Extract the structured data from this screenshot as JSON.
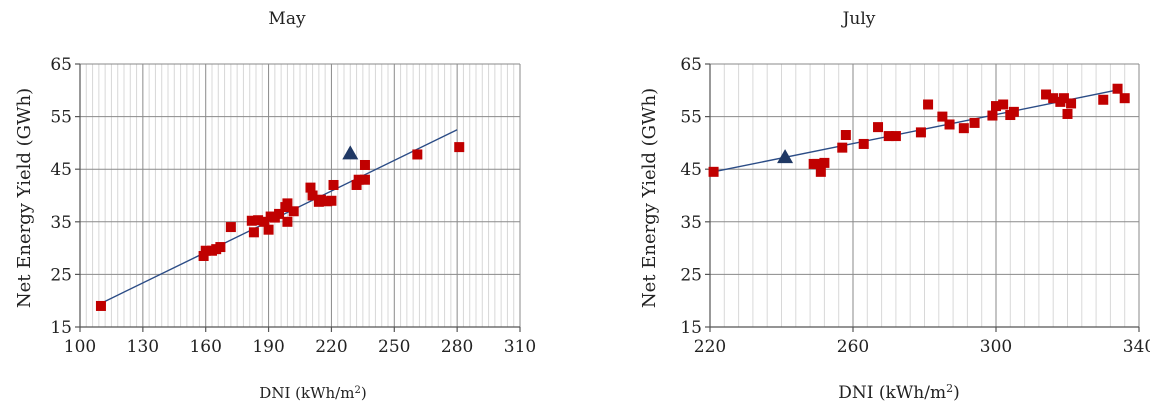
{
  "chart_data": [
    {
      "type": "scatter",
      "title": "May",
      "xlabel": "DNI (kWh/m",
      "xlabel_sup": "2",
      "xlabel_end": ")",
      "ylabel": "Net Energy Yield (GWh)",
      "xlim": [
        100,
        310
      ],
      "ylim": [
        15,
        65
      ],
      "xticks": [
        "100",
        "130",
        "160",
        "190",
        "220",
        "250",
        "280",
        "310"
      ],
      "yticks": [
        "15",
        "25",
        "35",
        "45",
        "55",
        "65"
      ],
      "grid": true,
      "colors": {
        "points": "#c00000",
        "highlight": "#1f3864",
        "trend": "#2b4c86"
      },
      "series": [
        {
          "marker": "square",
          "points": [
            [
              110,
              19
            ],
            [
              159,
              28.5
            ],
            [
              160,
              29.5
            ],
            [
              163,
              29.5
            ],
            [
              165,
              29.8
            ],
            [
              167,
              30.2
            ],
            [
              172,
              34
            ],
            [
              182,
              35.2
            ],
            [
              183,
              33
            ],
            [
              185,
              35.3
            ],
            [
              188,
              35
            ],
            [
              190,
              33.5
            ],
            [
              191,
              36
            ],
            [
              193,
              35.8
            ],
            [
              195,
              36.5
            ],
            [
              198,
              37.8
            ],
            [
              199,
              38.5
            ],
            [
              199,
              35
            ],
            [
              202,
              37
            ],
            [
              210,
              41.5
            ],
            [
              211,
              40
            ],
            [
              214,
              38.8
            ],
            [
              215,
              39.2
            ],
            [
              218,
              38.9
            ],
            [
              220,
              39
            ],
            [
              221,
              42
            ],
            [
              232,
              42
            ],
            [
              233,
              43
            ],
            [
              236,
              45.8
            ],
            [
              236,
              43
            ],
            [
              261,
              47.8
            ],
            [
              281,
              49.2
            ]
          ]
        },
        {
          "marker": "triangle",
          "points": [
            [
              229,
              48
            ]
          ]
        }
      ],
      "trendline": [
        [
          110,
          19.5
        ],
        [
          280,
          52.5
        ]
      ]
    },
    {
      "type": "scatter",
      "title": "July",
      "xlabel": "DNI (kWh/m",
      "xlabel_sup": "2",
      "xlabel_end": ")",
      "ylabel": "Net Energy Yield (GWh)",
      "xlim": [
        220,
        340
      ],
      "ylim": [
        15,
        65
      ],
      "xticks": [
        "220",
        "260",
        "300",
        "340"
      ],
      "yticks": [
        "15",
        "25",
        "35",
        "45",
        "55",
        "65"
      ],
      "grid": true,
      "colors": {
        "points": "#c00000",
        "highlight": "#1f3864",
        "trend": "#2b4c86"
      },
      "series": [
        {
          "marker": "square",
          "points": [
            [
              221,
              44.5
            ],
            [
              249,
              46
            ],
            [
              251,
              44.5
            ],
            [
              250,
              46
            ],
            [
              252,
              46.2
            ],
            [
              257,
              49.1
            ],
            [
              258,
              51.5
            ],
            [
              263,
              49.8
            ],
            [
              267,
              53
            ],
            [
              270,
              51.3
            ],
            [
              272,
              51.3
            ],
            [
              279,
              52
            ],
            [
              281,
              57.3
            ],
            [
              285,
              55
            ],
            [
              287,
              53.5
            ],
            [
              291,
              52.8
            ],
            [
              294,
              53.8
            ],
            [
              299,
              55.2
            ],
            [
              300,
              57
            ],
            [
              302,
              57.3
            ],
            [
              304,
              55.3
            ],
            [
              305,
              55.9
            ],
            [
              314,
              59.2
            ],
            [
              316,
              58.5
            ],
            [
              318,
              57.8
            ],
            [
              319,
              58.5
            ],
            [
              320,
              55.5
            ],
            [
              321,
              57.5
            ],
            [
              330,
              58.2
            ],
            [
              334,
              60.3
            ],
            [
              336,
              58.5
            ]
          ]
        },
        {
          "marker": "triangle",
          "points": [
            [
              241,
              47.3
            ]
          ]
        }
      ],
      "trendline": [
        [
          221,
          44.5
        ],
        [
          335,
          60.2
        ]
      ]
    }
  ]
}
